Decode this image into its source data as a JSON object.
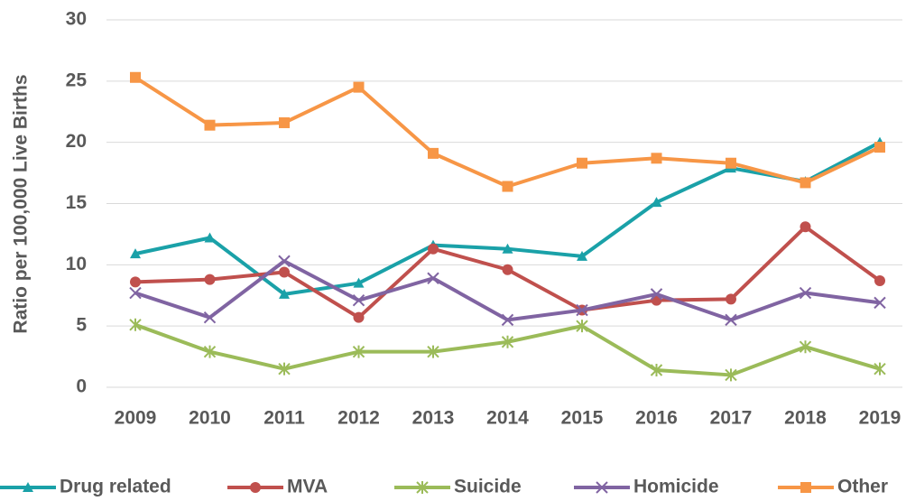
{
  "chart_data": {
    "type": "line",
    "y_label": "Ratio per 100,000 Live Births",
    "categories": [
      "2009",
      "2010",
      "2011",
      "2012",
      "2013",
      "2014",
      "2015",
      "2016",
      "2017",
      "2018",
      "2019"
    ],
    "series": [
      {
        "name": "Drug related",
        "color": "#1aa1a8",
        "marker": "triangle",
        "values": [
          10.9,
          12.2,
          7.6,
          8.5,
          11.6,
          11.3,
          10.7,
          15.1,
          17.9,
          16.8,
          20.0
        ]
      },
      {
        "name": "MVA",
        "color": "#c0504d",
        "marker": "circle",
        "values": [
          8.6,
          8.8,
          9.4,
          5.7,
          11.3,
          9.6,
          6.3,
          7.1,
          7.2,
          13.1,
          8.7
        ]
      },
      {
        "name": "Suicide",
        "color": "#9bbb59",
        "marker": "star",
        "values": [
          5.1,
          2.9,
          1.5,
          2.9,
          2.9,
          3.7,
          5.0,
          1.4,
          1.0,
          3.3,
          1.5
        ]
      },
      {
        "name": "Homicide",
        "color": "#8064a2",
        "marker": "x",
        "values": [
          7.7,
          5.7,
          10.3,
          7.1,
          8.9,
          5.5,
          6.3,
          7.6,
          5.5,
          7.7,
          6.9
        ]
      },
      {
        "name": "Other",
        "color": "#f79646",
        "marker": "square",
        "values": [
          25.3,
          21.4,
          21.6,
          24.5,
          19.1,
          16.4,
          18.3,
          18.7,
          18.3,
          16.7,
          19.6
        ]
      }
    ],
    "ylim": [
      0,
      30
    ],
    "yticks": [
      0,
      5,
      10,
      15,
      20,
      25,
      30
    ],
    "grid": true,
    "legend": "bottom"
  }
}
